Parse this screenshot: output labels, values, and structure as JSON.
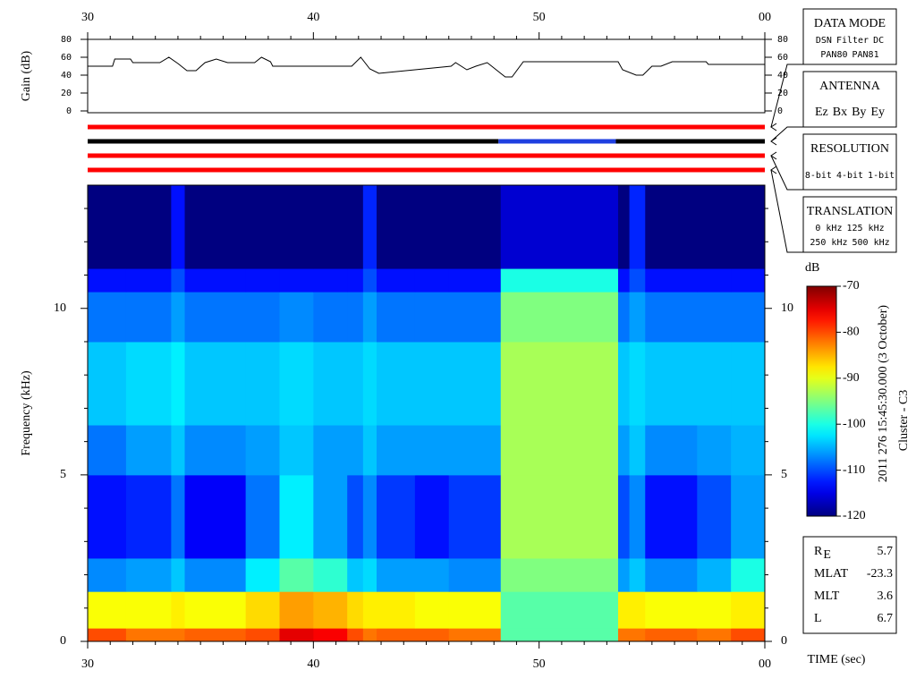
{
  "chart_data": [
    {
      "type": "line",
      "ylabel": "Gain (dB)",
      "color": "#000000",
      "x": [
        30,
        31.1,
        31.2,
        31.9,
        32.0,
        33.2,
        33.6,
        34.0,
        34.4,
        34.8,
        35.2,
        35.7,
        36.2,
        37.4,
        37.7,
        38.1,
        38.2,
        41.7,
        42.1,
        42.5,
        42.9,
        46.1,
        46.3,
        46.8,
        47.2,
        47.7,
        47.9,
        48.1,
        48.5,
        48.8,
        49.3,
        53.5,
        53.7,
        54.3,
        54.6,
        55.0,
        55.4,
        55.9,
        57.4,
        57.5,
        60
      ],
      "values": [
        50,
        50,
        58,
        58,
        54,
        54,
        60,
        53,
        45,
        45,
        54,
        58,
        54,
        54,
        60,
        55,
        50,
        50,
        60,
        47,
        42,
        50,
        54,
        46,
        50,
        54,
        50,
        46,
        38,
        38,
        55,
        55,
        46,
        40,
        40,
        50,
        50,
        55,
        55,
        52,
        52
      ],
      "xlim": [
        30,
        60
      ],
      "xticks": [
        30,
        40,
        50,
        {
          "value": 60,
          "label": "00"
        }
      ],
      "xminorticks": [
        31,
        32,
        33,
        34,
        35,
        36,
        37,
        38,
        39,
        41,
        42,
        43,
        44,
        45,
        46,
        47,
        48,
        49,
        51,
        52,
        53,
        54,
        55,
        56,
        57,
        58,
        59
      ],
      "ylim": [
        -2,
        80
      ],
      "yticks": [
        0,
        20,
        40,
        60,
        80
      ]
    },
    {
      "type": "timeline",
      "xlim": [
        30,
        60
      ],
      "tracks": [
        {
          "segments": [
            {
              "start": 30,
              "end": 60,
              "color": "#ff0000"
            }
          ]
        },
        {
          "segments": [
            {
              "start": 30,
              "end": 48.2,
              "color": "#000000"
            },
            {
              "start": 48.2,
              "end": 53.4,
              "color": "#1f3fe0"
            },
            {
              "start": 53.4,
              "end": 60,
              "color": "#000000"
            }
          ]
        },
        {
          "segments": [
            {
              "start": 30,
              "end": 60,
              "color": "#ff0000"
            }
          ]
        },
        {
          "segments": [
            {
              "start": 30,
              "end": 60,
              "color": "#ff0000"
            }
          ]
        }
      ],
      "legends": [
        {
          "title": "DATA MODE",
          "rows": [
            [
              {
                "text": "DSN",
                "color": "#ff0000"
              },
              {
                "text": "Filter",
                "color": "#00cc00"
              },
              {
                "text": "DC",
                "color": "#0000ff"
              }
            ],
            [
              {
                "text": "PAN80",
                "color": "#000000"
              },
              {
                "text": "PAN81",
                "color": "#00cccc"
              }
            ]
          ]
        },
        {
          "title": "ANTENNA",
          "rows": [
            [
              {
                "text": "Ez",
                "color": "#ff0000"
              },
              {
                "text": "Bx",
                "color": "#00cc00"
              },
              {
                "text": "By",
                "color": "#0000ff"
              },
              {
                "text": "Ey",
                "color": "#000000"
              }
            ]
          ]
        },
        {
          "title": "RESOLUTION",
          "rows": [
            [
              {
                "text": "8-bit",
                "color": "#ff0000"
              },
              {
                "text": "4-bit",
                "color": "#00cc00"
              },
              {
                "text": "1-bit",
                "color": "#0000ff"
              }
            ]
          ]
        },
        {
          "title": "TRANSLATION",
          "rows": [
            [
              {
                "text": "0 kHz",
                "color": "#ff0000"
              },
              {
                "text": "125 kHz",
                "color": "#00cc00"
              }
            ],
            [
              {
                "text": "250 kHz",
                "color": "#0000ff"
              },
              {
                "text": "500 kHz",
                "color": "#000000"
              }
            ]
          ]
        }
      ]
    },
    {
      "type": "heatmap",
      "xlabel": "TIME (sec)",
      "ylabel": "Frequency (kHz)",
      "xbins": [
        30,
        31.7,
        33.7,
        34.3,
        37,
        38.5,
        40,
        41.5,
        42.2,
        42.8,
        44.5,
        46,
        48.3,
        53.5,
        54,
        54.7,
        57,
        58.5,
        60
      ],
      "ybins": [
        0,
        0.4,
        1.5,
        2.5,
        5,
        6.5,
        9,
        10.5,
        11.2,
        13.7
      ],
      "values": [
        [
          -80,
          -82,
          -82,
          -81,
          -80,
          -75,
          -76,
          -80,
          -82,
          -81,
          -81,
          -82,
          -97,
          -82,
          -82,
          -81,
          -82,
          -80
        ],
        [
          -89,
          -89,
          -88,
          -89,
          -87,
          -84,
          -85,
          -87,
          -88,
          -88,
          -89,
          -89,
          -97,
          -88,
          -88,
          -89,
          -89,
          -88
        ],
        [
          -107,
          -106,
          -104,
          -107,
          -102,
          -97,
          -99,
          -104,
          -103,
          -106,
          -106,
          -107,
          -95,
          -106,
          -104,
          -107,
          -105,
          -100
        ],
        [
          -113,
          -112,
          -108,
          -114,
          -108,
          -102,
          -106,
          -110,
          -107,
          -111,
          -113,
          -111,
          -93,
          -110,
          -107,
          -113,
          -110,
          -106
        ],
        [
          -108,
          -106,
          -104,
          -107,
          -106,
          -104,
          -106,
          -106,
          -104,
          -106,
          -106,
          -106,
          -93,
          -106,
          -104,
          -107,
          -106,
          -105
        ],
        [
          -104,
          -103,
          -102,
          -104,
          -104,
          -103,
          -104,
          -104,
          -103,
          -104,
          -104,
          -104,
          -93,
          -104,
          -103,
          -104,
          -104,
          -104
        ],
        [
          -108,
          -108,
          -106,
          -108,
          -108,
          -107,
          -108,
          -108,
          -106,
          -108,
          -108,
          -108,
          -95,
          -108,
          -106,
          -108,
          -108,
          -108
        ],
        [
          -113,
          -113,
          -110,
          -113,
          -113,
          -113,
          -113,
          -113,
          -110,
          -113,
          -113,
          -113,
          -100,
          -113,
          -110,
          -113,
          -113,
          -113
        ],
        [
          -120,
          -120,
          -113,
          -120,
          -120,
          -120,
          -120,
          -120,
          -112,
          -120,
          -120,
          -120,
          -116,
          -120,
          -112,
          -120,
          -120,
          -120
        ]
      ],
      "xlim": [
        30,
        60
      ],
      "xticks": [
        30,
        40,
        50,
        {
          "value": 60,
          "label": "00"
        }
      ],
      "xminorticks": [
        31,
        32,
        33,
        34,
        35,
        36,
        37,
        38,
        39,
        41,
        42,
        43,
        44,
        45,
        46,
        47,
        48,
        49,
        51,
        52,
        53,
        54,
        55,
        56,
        57,
        58,
        59
      ],
      "ylim": [
        0,
        13.7
      ],
      "yticks": [
        0,
        5,
        10
      ],
      "yminorticks": [
        1,
        2,
        3,
        4,
        6,
        7,
        8,
        9,
        11,
        12,
        13
      ],
      "colorbar": {
        "label": "dB",
        "colormap": "jet",
        "zlim": [
          -120,
          -70
        ],
        "zticks": [
          -70,
          -80,
          -90,
          -100,
          -110,
          -120
        ]
      },
      "annotations": [
        "2011 276 15:45:30.000 (3 October)",
        "Cluster - C3"
      ],
      "info": [
        {
          "label": "R",
          "sub": "E",
          "value": 5.7
        },
        {
          "label": "MLAT",
          "value": -23.3
        },
        {
          "label": "MLT",
          "value": 3.6
        },
        {
          "label": "L",
          "value": 6.7
        }
      ]
    }
  ]
}
